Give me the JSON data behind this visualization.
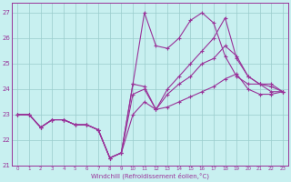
{
  "xlabel": "Windchill (Refroidissement éolien,°C)",
  "background_color": "#c8f0f0",
  "line_color": "#993399",
  "grid_color": "#99cccc",
  "xlim": [
    -0.5,
    23.5
  ],
  "ylim": [
    21.0,
    27.4
  ],
  "yticks": [
    21,
    22,
    23,
    24,
    25,
    26,
    27
  ],
  "xticks": [
    0,
    1,
    2,
    3,
    4,
    5,
    6,
    7,
    8,
    9,
    10,
    11,
    12,
    13,
    14,
    15,
    16,
    17,
    18,
    19,
    20,
    21,
    22,
    23
  ],
  "series": [
    [
      23.0,
      23.0,
      22.5,
      22.8,
      22.8,
      22.6,
      22.6,
      22.4,
      21.3,
      21.5,
      24.2,
      27.0,
      25.7,
      25.6,
      26.0,
      26.7,
      27.0,
      26.6,
      25.3,
      24.5,
      24.2,
      24.2,
      23.9,
      23.9
    ],
    [
      23.0,
      23.0,
      22.5,
      22.8,
      22.8,
      22.6,
      22.6,
      22.4,
      21.3,
      21.5,
      24.2,
      24.1,
      23.2,
      24.0,
      24.5,
      25.0,
      25.5,
      26.0,
      26.8,
      25.2,
      24.5,
      24.2,
      24.2,
      23.9
    ],
    [
      23.0,
      23.0,
      22.5,
      22.8,
      22.8,
      22.6,
      22.6,
      22.4,
      21.3,
      21.5,
      23.8,
      24.0,
      23.2,
      23.8,
      24.2,
      24.5,
      25.0,
      25.2,
      25.7,
      25.3,
      24.5,
      24.2,
      24.1,
      23.9
    ],
    [
      23.0,
      23.0,
      22.5,
      22.8,
      22.8,
      22.6,
      22.6,
      22.4,
      21.3,
      21.5,
      23.0,
      23.5,
      23.2,
      23.3,
      23.5,
      23.7,
      23.9,
      24.1,
      24.4,
      24.6,
      24.0,
      23.8,
      23.8,
      23.9
    ]
  ]
}
